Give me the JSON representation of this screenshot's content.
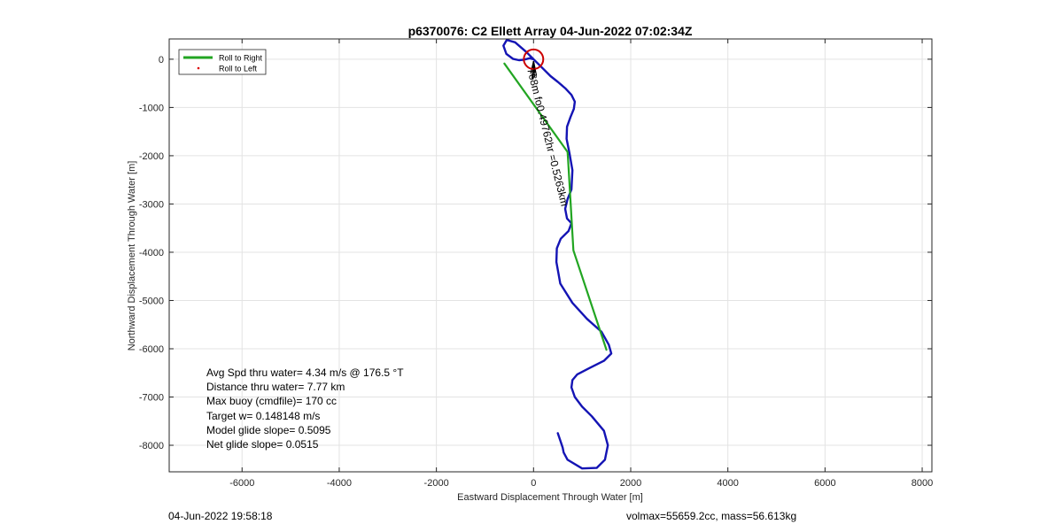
{
  "chart_data": {
    "type": "line",
    "title": "p6370076: C2 Ellett Array 04-Jun-2022 07:02:34Z",
    "xlabel": "Eastward Displacement Through Water [m]",
    "ylabel": "Northward Displacement Through Water [m]",
    "xlim": [
      -7500,
      8200
    ],
    "ylim": [
      -8550,
      420
    ],
    "xticks": [
      -6000,
      -4000,
      -2000,
      0,
      2000,
      4000,
      6000,
      8000
    ],
    "yticks": [
      0,
      -1000,
      -2000,
      -3000,
      -4000,
      -5000,
      -6000,
      -7000,
      -8000
    ],
    "grid": true,
    "legend": {
      "position": "top-left",
      "entries": [
        {
          "label": "Roll to Right",
          "color": "#22a522",
          "style": "line"
        },
        {
          "label": "Roll to Left",
          "color": "#dd0000",
          "style": "marker"
        }
      ]
    },
    "series": [
      {
        "name": "Roll to Right",
        "color": "#22a522",
        "x": [
          -600,
          700,
          710,
          820,
          1500
        ],
        "y": [
          -90,
          -1920,
          -2050,
          -3960,
          -6020
        ]
      },
      {
        "color": "#1414b4",
        "x": [
          500,
          550,
          600,
          620,
          700,
          1000,
          1300,
          1470,
          1530,
          1450,
          1200,
          1000,
          850,
          780,
          800,
          900,
          1150,
          1450,
          1600,
          1550,
          1400,
          1100,
          800,
          550,
          470,
          480,
          560,
          720,
          780,
          690,
          650,
          700,
          780,
          800,
          740,
          680,
          690,
          760,
          830,
          850,
          780,
          650,
          500,
          350,
          200,
          60,
          -150,
          -380,
          -550,
          -620,
          -560,
          -420,
          -300,
          -200,
          -80,
          0
        ],
        "y": [
          -7750,
          -7900,
          -8050,
          -8150,
          -8300,
          -8480,
          -8470,
          -8300,
          -8000,
          -7700,
          -7400,
          -7200,
          -7000,
          -6800,
          -6650,
          -6530,
          -6400,
          -6250,
          -6100,
          -5920,
          -5650,
          -5380,
          -5050,
          -4650,
          -4200,
          -3920,
          -3720,
          -3560,
          -3400,
          -3300,
          -3100,
          -2900,
          -2700,
          -2300,
          -1950,
          -1650,
          -1400,
          -1200,
          -1030,
          -880,
          -740,
          -600,
          -470,
          -350,
          -200,
          -60,
          150,
          350,
          400,
          280,
          110,
          5,
          -20,
          -10,
          20,
          0
        ]
      }
    ],
    "markers": [
      {
        "label": "target-circle",
        "x": 0,
        "y": 0,
        "radius_m": 200,
        "color": "#cc0000"
      }
    ],
    "annotations": {
      "path_label": "768m fo0.49762hr =0.5263km",
      "stats": [
        "Avg Spd thru water=  4.34 m/s @ 176.5 °T",
        "Distance thru water=  7.77 km",
        "Max buoy (cmdfile)= 170 cc",
        "Target w= 0.148148 m/s",
        "Model glide slope= 0.5095",
        "Net glide slope= 0.0515"
      ]
    }
  },
  "footer": {
    "left": "04-Jun-2022 19:58:18",
    "right": "volmax=55659.2cc, mass=56.613kg"
  }
}
